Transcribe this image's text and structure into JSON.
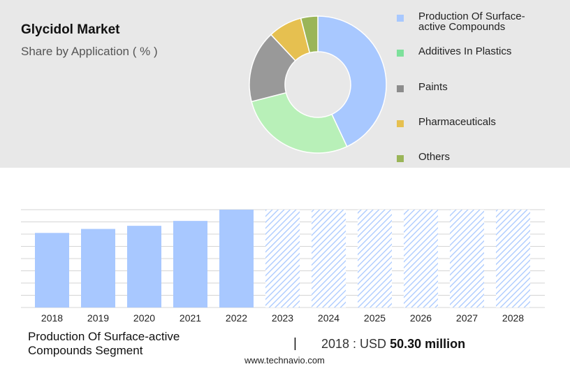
{
  "header": {
    "title": "Glycidol Market",
    "subtitle": "Share by Application ( % )"
  },
  "footer": {
    "segment": "Production Of Surface-active Compounds Segment",
    "separator": "|",
    "value_prefix": "2018 : USD",
    "value_bold": "50.30 million",
    "url": "www.technavio.com"
  },
  "chart_data": [
    {
      "type": "pie",
      "title": "",
      "donut": true,
      "slices": [
        {
          "label": "Production Of Surface-active Compounds",
          "value": 43,
          "color": "#a8c8ff"
        },
        {
          "label": "Additives In Plastics",
          "value": 28,
          "color": "#b8f0b8"
        },
        {
          "label": "Paints",
          "value": 17,
          "color": "#999999"
        },
        {
          "label": "Pharmaceuticals",
          "value": 8,
          "color": "#e6c050"
        },
        {
          "label": "Others",
          "value": 4,
          "color": "#9ab558"
        }
      ],
      "legend_colors": [
        "#a8c8ff",
        "#7de09b",
        "#8c8c8c",
        "#e6c050",
        "#9ab558"
      ],
      "legend_placement": "right"
    },
    {
      "type": "bar",
      "title": "",
      "categories": [
        "2018",
        "2019",
        "2020",
        "2021",
        "2022",
        "2023",
        "2024",
        "2025",
        "2026",
        "2027",
        "2028"
      ],
      "values": [
        50.3,
        53.0,
        55.1,
        58.4,
        66.0,
        66.0,
        66.0,
        66.0,
        66.0,
        66.0,
        66.0
      ],
      "forecast_from_index": 5,
      "ylim": [
        0,
        66
      ],
      "grid": true,
      "bar_color": "#a8c8ff",
      "forecast_pattern": "diagonal-hatch"
    }
  ]
}
